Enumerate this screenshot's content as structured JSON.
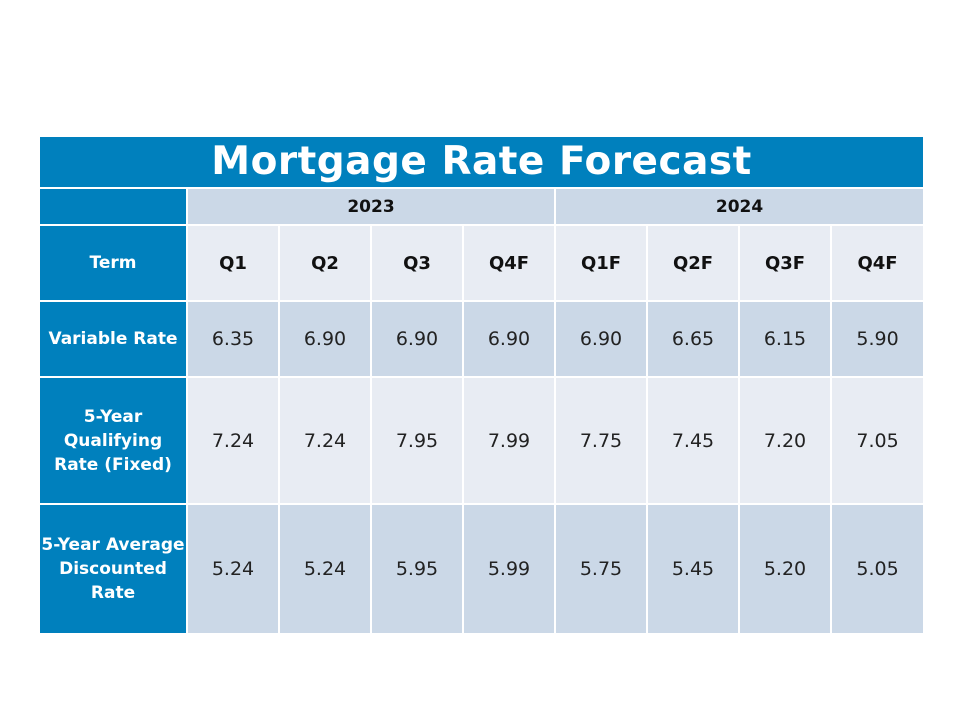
{
  "title": "Mortgage Rate Forecast",
  "years": [
    "2023",
    "2024"
  ],
  "term_label": "Term",
  "quarters": [
    "Q1",
    "Q2",
    "Q3",
    "Q4F",
    "Q1F",
    "Q2F",
    "Q3F",
    "Q4F"
  ],
  "rows": [
    {
      "label": "Variable Rate",
      "values": [
        "6.35",
        "6.90",
        "6.90",
        "6.90",
        "6.90",
        "6.65",
        "6.15",
        "5.90"
      ]
    },
    {
      "label_lines": [
        "5-Year",
        "Qualifying",
        "Rate (Fixed)"
      ],
      "values": [
        "7.24",
        "7.24",
        "7.95",
        "7.99",
        "7.75",
        "7.45",
        "7.20",
        "7.05"
      ]
    },
    {
      "label_lines": [
        "5-Year Average",
        "Discounted",
        "Rate"
      ],
      "values": [
        "5.24",
        "5.24",
        "5.95",
        "5.99",
        "5.75",
        "5.45",
        "5.20",
        "5.05"
      ]
    }
  ],
  "colors": {
    "header_blue": "#0080bd",
    "cell_dark": "#cbd8e7",
    "cell_light": "#e8ecf3"
  }
}
